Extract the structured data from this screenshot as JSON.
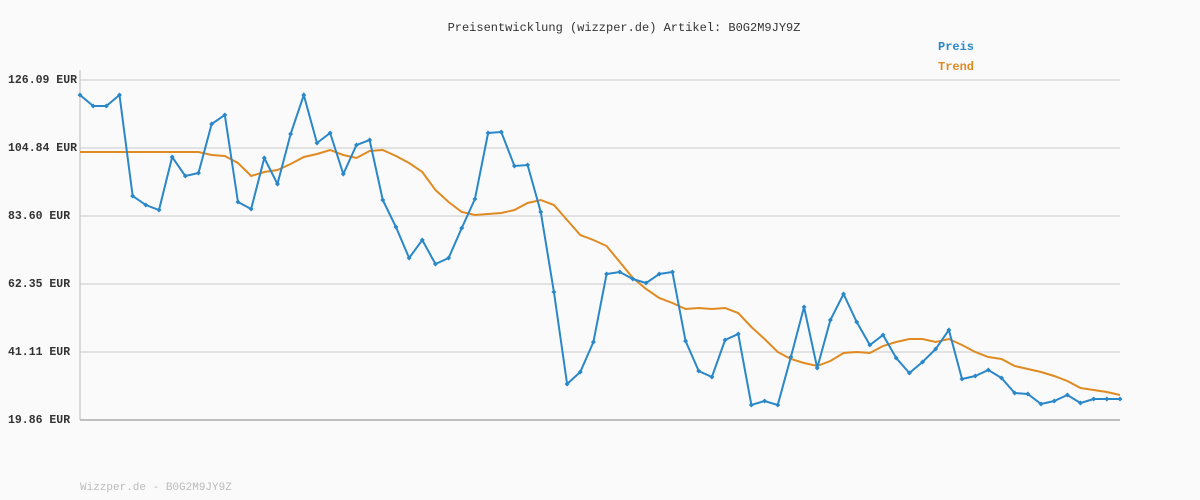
{
  "chart_data": {
    "type": "line",
    "title": "Preisentwicklung (wizzper.de) Artikel: B0G2M9JY9Z",
    "footer": "Wizzper.de - B0G2M9JY9Z",
    "ylim": [
      19.86,
      126.09
    ],
    "yticks": [
      {
        "value": 19.86,
        "label": "19.86 EUR"
      },
      {
        "value": 41.11,
        "label": "41.11 EUR"
      },
      {
        "value": 62.35,
        "label": "62.35 EUR"
      },
      {
        "value": 83.6,
        "label": "83.60 EUR"
      },
      {
        "value": 104.84,
        "label": "104.84 EUR"
      },
      {
        "value": 126.09,
        "label": "126.09 EUR"
      }
    ],
    "grid": true,
    "legend": "top-right",
    "series": [
      {
        "name": "Preis",
        "color": "#2a87c8",
        "markers": true,
        "values": [
          121.4,
          117.97,
          117.97,
          121.4,
          89.85,
          87.03,
          85.47,
          102.03,
          96.1,
          97.03,
          112.34,
          115.16,
          87.97,
          85.78,
          101.72,
          93.6,
          109.22,
          121.4,
          106.41,
          109.53,
          96.72,
          105.78,
          107.34,
          88.6,
          80.16,
          70.48,
          76.1,
          68.6,
          70.48,
          79.85,
          88.91,
          109.53,
          109.84,
          99.22,
          99.53,
          84.85,
          59.85,
          31.11,
          34.86,
          44.23,
          65.48,
          66.1,
          63.91,
          62.66,
          65.48,
          66.1,
          44.54,
          35.17,
          33.3,
          44.85,
          46.73,
          24.55,
          25.8,
          24.55,
          39.54,
          55.17,
          36.11,
          51.1,
          59.23,
          50.48,
          43.29,
          46.42,
          39.23,
          34.55,
          37.98,
          42.04,
          47.98,
          32.67,
          33.61,
          35.48,
          32.98,
          28.3,
          27.98,
          24.86,
          25.8,
          27.67,
          25.17,
          26.42,
          26.42,
          26.42
        ]
      },
      {
        "name": "Trend",
        "color": "#e08a22",
        "markers": false,
        "values": [
          103.59,
          103.59,
          103.59,
          103.59,
          103.59,
          103.59,
          103.59,
          103.59,
          103.59,
          103.59,
          102.66,
          102.34,
          100.16,
          96.1,
          97.35,
          97.97,
          99.85,
          102.03,
          102.97,
          104.22,
          102.66,
          101.72,
          103.91,
          104.22,
          102.34,
          100.16,
          97.35,
          91.72,
          87.97,
          84.85,
          83.91,
          84.22,
          84.53,
          85.47,
          87.66,
          88.6,
          87.03,
          82.35,
          77.66,
          76.1,
          74.22,
          69.23,
          64.23,
          60.79,
          57.98,
          56.42,
          54.54,
          54.86,
          54.54,
          54.86,
          53.29,
          48.92,
          45.17,
          41.11,
          38.92,
          37.67,
          36.73,
          38.29,
          40.79,
          41.11,
          40.79,
          42.98,
          44.23,
          45.17,
          45.17,
          44.23,
          45.17,
          43.29,
          41.11,
          39.54,
          38.92,
          36.73,
          35.8,
          34.86,
          33.61,
          32.05,
          29.86,
          29.23,
          28.61,
          27.67
        ]
      }
    ]
  }
}
